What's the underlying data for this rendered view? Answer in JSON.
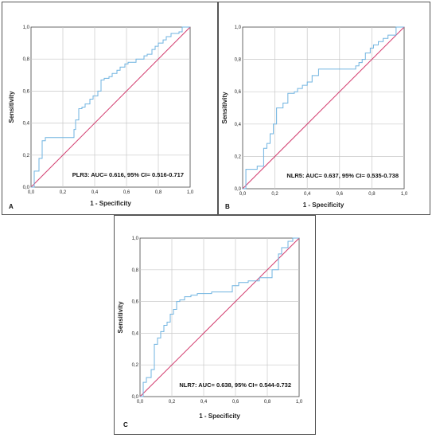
{
  "chart_data": [
    {
      "type": "line",
      "panel_label": "A",
      "xlabel": "1 - Specificity",
      "ylabel": "Sensitivity",
      "xlim": [
        0,
        1
      ],
      "ylim": [
        0,
        1
      ],
      "ticks": [
        "0,0",
        "0,2",
        "0,4",
        "0,6",
        "0,8",
        "1,0"
      ],
      "tick_values": [
        0,
        0.2,
        0.4,
        0.6,
        0.8,
        1.0
      ],
      "grid": true,
      "annotation": "PLR3: AUC= 0.616, 95% CI= 0.516-0.717",
      "colors": {
        "roc": "#6fb3e0",
        "reference": "#d23c6e",
        "grid": "#c8c8c8"
      },
      "series": [
        {
          "x": [
            0,
            0.02,
            0.02,
            0.05,
            0.05,
            0.07,
            0.07,
            0.09,
            0.09,
            0.27,
            0.27,
            0.28,
            0.28,
            0.3,
            0.3,
            0.32,
            0.32,
            0.34,
            0.34,
            0.37,
            0.37,
            0.39,
            0.39,
            0.42,
            0.42,
            0.44,
            0.44,
            0.46,
            0.46,
            0.49,
            0.49,
            0.51,
            0.51,
            0.54,
            0.54,
            0.56,
            0.56,
            0.59,
            0.59,
            0.61,
            0.61,
            0.66,
            0.66,
            0.71,
            0.71,
            0.73,
            0.73,
            0.76,
            0.76,
            0.78,
            0.78,
            0.8,
            0.8,
            0.83,
            0.83,
            0.85,
            0.85,
            0.88,
            0.88,
            0.93,
            0.93,
            0.95,
            0.95,
            1.0
          ],
          "y": [
            0,
            0,
            0.1,
            0.1,
            0.18,
            0.18,
            0.29,
            0.29,
            0.31,
            0.31,
            0.36,
            0.36,
            0.42,
            0.42,
            0.49,
            0.49,
            0.5,
            0.5,
            0.52,
            0.52,
            0.55,
            0.55,
            0.57,
            0.57,
            0.6,
            0.6,
            0.67,
            0.67,
            0.68,
            0.68,
            0.69,
            0.69,
            0.71,
            0.71,
            0.73,
            0.73,
            0.75,
            0.75,
            0.77,
            0.77,
            0.78,
            0.78,
            0.8,
            0.8,
            0.82,
            0.82,
            0.83,
            0.83,
            0.86,
            0.86,
            0.88,
            0.88,
            0.9,
            0.9,
            0.92,
            0.92,
            0.94,
            0.94,
            0.96,
            0.96,
            0.97,
            0.97,
            1.0,
            1.0
          ]
        },
        {
          "x": [
            0,
            1
          ],
          "y": [
            0,
            1
          ]
        }
      ]
    },
    {
      "type": "line",
      "panel_label": "B",
      "xlabel": "1 - Specificity",
      "ylabel": "Sensitivity",
      "xlim": [
        0,
        1
      ],
      "ylim": [
        0,
        1
      ],
      "ticks": [
        "0,0",
        "0,2",
        "0,4",
        "0,6",
        "0,8",
        "1,0"
      ],
      "tick_values": [
        0,
        0.2,
        0.4,
        0.6,
        0.8,
        1.0
      ],
      "grid": true,
      "annotation": "NLR5: AUC= 0.637, 95% CI= 0.535-0.738",
      "colors": {
        "roc": "#6fb3e0",
        "reference": "#d23c6e",
        "grid": "#c8c8c8"
      },
      "series": [
        {
          "x": [
            0,
            0.02,
            0.02,
            0.09,
            0.09,
            0.13,
            0.13,
            0.15,
            0.15,
            0.17,
            0.17,
            0.19,
            0.19,
            0.21,
            0.21,
            0.25,
            0.25,
            0.28,
            0.28,
            0.32,
            0.32,
            0.34,
            0.34,
            0.37,
            0.37,
            0.4,
            0.4,
            0.43,
            0.43,
            0.47,
            0.47,
            0.7,
            0.7,
            0.72,
            0.72,
            0.74,
            0.74,
            0.76,
            0.76,
            0.79,
            0.79,
            0.81,
            0.81,
            0.84,
            0.84,
            0.87,
            0.87,
            0.9,
            0.9,
            0.95,
            0.95,
            1.0
          ],
          "y": [
            0,
            0,
            0.12,
            0.12,
            0.14,
            0.14,
            0.25,
            0.25,
            0.28,
            0.28,
            0.34,
            0.34,
            0.4,
            0.4,
            0.5,
            0.5,
            0.53,
            0.53,
            0.59,
            0.59,
            0.6,
            0.6,
            0.62,
            0.62,
            0.64,
            0.64,
            0.66,
            0.66,
            0.7,
            0.7,
            0.74,
            0.74,
            0.76,
            0.76,
            0.78,
            0.78,
            0.8,
            0.8,
            0.84,
            0.84,
            0.87,
            0.87,
            0.89,
            0.89,
            0.91,
            0.91,
            0.93,
            0.93,
            0.95,
            0.95,
            1.0,
            1.0
          ]
        },
        {
          "x": [
            0,
            1
          ],
          "y": [
            0,
            1
          ]
        }
      ]
    },
    {
      "type": "line",
      "panel_label": "C",
      "xlabel": "1 - Specificity",
      "ylabel": "Sensitivity",
      "xlim": [
        0,
        1
      ],
      "ylim": [
        0,
        1
      ],
      "ticks": [
        "0,0",
        "0,2",
        "0,4",
        "0,6",
        "0,8",
        "1,0"
      ],
      "tick_values": [
        0,
        0.2,
        0.4,
        0.6,
        0.8,
        1.0
      ],
      "grid": true,
      "annotation": "NLR7: AUC= 0.638, 95% CI= 0.544-0.732",
      "colors": {
        "roc": "#6fb3e0",
        "reference": "#d23c6e",
        "grid": "#c8c8c8"
      },
      "series": [
        {
          "x": [
            0,
            0.02,
            0.02,
            0.04,
            0.04,
            0.07,
            0.07,
            0.09,
            0.09,
            0.11,
            0.11,
            0.13,
            0.13,
            0.15,
            0.15,
            0.17,
            0.17,
            0.19,
            0.19,
            0.21,
            0.21,
            0.23,
            0.23,
            0.25,
            0.25,
            0.28,
            0.28,
            0.32,
            0.32,
            0.36,
            0.36,
            0.45,
            0.45,
            0.58,
            0.58,
            0.62,
            0.62,
            0.68,
            0.68,
            0.75,
            0.75,
            0.83,
            0.83,
            0.87,
            0.87,
            0.89,
            0.89,
            0.93,
            0.93,
            0.96,
            0.96,
            1.0
          ],
          "y": [
            0,
            0,
            0.09,
            0.09,
            0.12,
            0.12,
            0.17,
            0.17,
            0.33,
            0.33,
            0.37,
            0.37,
            0.41,
            0.41,
            0.45,
            0.45,
            0.47,
            0.47,
            0.52,
            0.52,
            0.55,
            0.55,
            0.6,
            0.6,
            0.61,
            0.61,
            0.63,
            0.63,
            0.64,
            0.64,
            0.65,
            0.65,
            0.66,
            0.66,
            0.7,
            0.7,
            0.72,
            0.72,
            0.73,
            0.73,
            0.75,
            0.75,
            0.8,
            0.8,
            0.9,
            0.9,
            0.94,
            0.94,
            0.98,
            0.98,
            1.0,
            1.0
          ]
        },
        {
          "x": [
            0,
            1
          ],
          "y": [
            0,
            1
          ]
        }
      ]
    }
  ]
}
